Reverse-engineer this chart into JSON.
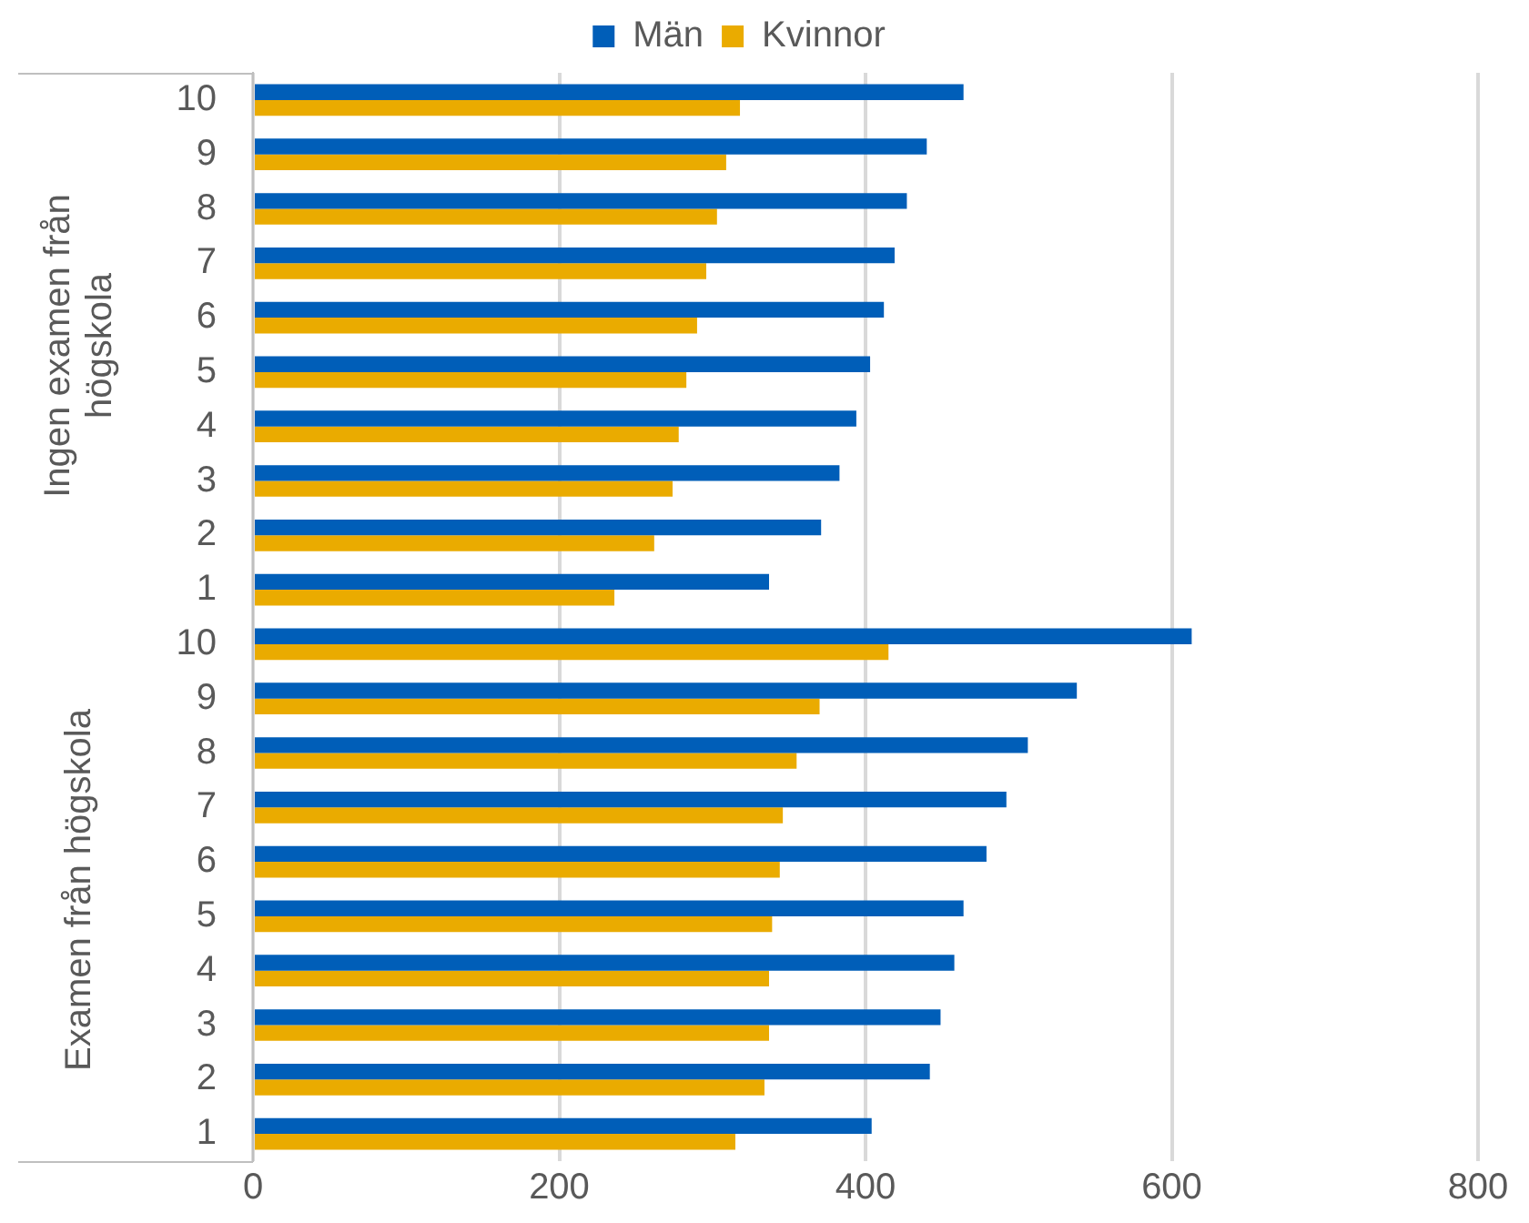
{
  "chart_data": {
    "type": "bar",
    "orientation": "horizontal",
    "categories": [
      "10",
      "9",
      "8",
      "7",
      "6",
      "5",
      "4",
      "3",
      "2",
      "1",
      "10",
      "9",
      "8",
      "7",
      "6",
      "5",
      "4",
      "3",
      "2",
      "1"
    ],
    "series": [
      {
        "name": "Män",
        "color": "#005eb8",
        "values": [
          464,
          440,
          427,
          419,
          412,
          403,
          394,
          383,
          371,
          337,
          613,
          538,
          506,
          492,
          479,
          464,
          458,
          449,
          442,
          404
        ]
      },
      {
        "name": "Kvinnor",
        "color": "#eaab00",
        "values": [
          318,
          309,
          303,
          296,
          290,
          283,
          278,
          274,
          262,
          236,
          415,
          370,
          355,
          346,
          344,
          339,
          337,
          337,
          334,
          315
        ]
      }
    ],
    "xlim": [
      0,
      800
    ],
    "xticks": [
      0,
      200,
      400,
      600,
      800
    ],
    "grid": "x",
    "legend": "top",
    "annotations": [
      "Ingen examen från högskola",
      "Examen från högskola"
    ]
  }
}
